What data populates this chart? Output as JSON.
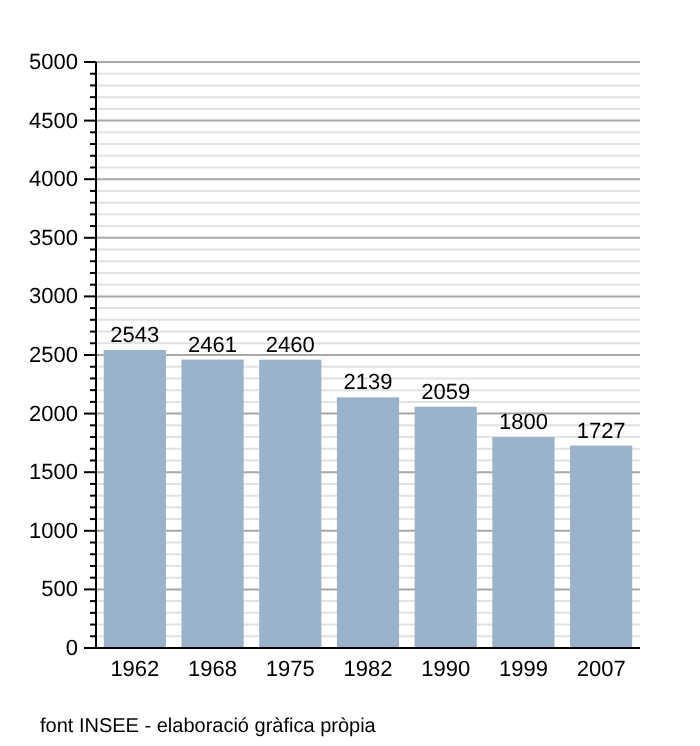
{
  "chart_data": {
    "type": "bar",
    "categories": [
      "1962",
      "1968",
      "1975",
      "1982",
      "1990",
      "1999",
      "2007"
    ],
    "values": [
      2543,
      2461,
      2460,
      2139,
      2059,
      1800,
      1727
    ],
    "color": "#9ab2cb",
    "data_labels": true,
    "grid": "y",
    "ylim": [
      0,
      5000
    ],
    "yticks": [
      0,
      {
        "value": 100,
        "label": null
      },
      {
        "value": 200,
        "label": null
      },
      {
        "value": 300,
        "label": null
      },
      {
        "value": 400,
        "label": null
      },
      500,
      {
        "value": 600,
        "label": null
      },
      {
        "value": 700,
        "label": null
      },
      {
        "value": 800,
        "label": null
      },
      {
        "value": 900,
        "label": null
      },
      1000,
      {
        "value": 1100,
        "label": null
      },
      {
        "value": 1200,
        "label": null
      },
      {
        "value": 1300,
        "label": null
      },
      {
        "value": 1400,
        "label": null
      },
      1500,
      {
        "value": 1600,
        "label": null
      },
      {
        "value": 1700,
        "label": null
      },
      {
        "value": 1800,
        "label": null
      },
      {
        "value": 1900,
        "label": null
      },
      2000,
      {
        "value": 2100,
        "label": null
      },
      {
        "value": 2200,
        "label": null
      },
      {
        "value": 2300,
        "label": null
      },
      {
        "value": 2400,
        "label": null
      },
      2500,
      {
        "value": 2600,
        "label": null
      },
      {
        "value": 2700,
        "label": null
      },
      {
        "value": 2800,
        "label": null
      },
      {
        "value": 2900,
        "label": null
      },
      3000,
      {
        "value": 3100,
        "label": null
      },
      {
        "value": 3200,
        "label": null
      },
      {
        "value": 3300,
        "label": null
      },
      {
        "value": 3400,
        "label": null
      },
      3500,
      {
        "value": 3600,
        "label": null
      },
      {
        "value": 3700,
        "label": null
      },
      {
        "value": 3800,
        "label": null
      },
      {
        "value": 3900,
        "label": null
      },
      4000,
      {
        "value": 4100,
        "label": null
      },
      {
        "value": 4200,
        "label": null
      },
      {
        "value": 4300,
        "label": null
      },
      {
        "value": 4400,
        "label": null
      },
      4500,
      {
        "value": 4600,
        "label": null
      },
      {
        "value": 4700,
        "label": null
      },
      {
        "value": 4800,
        "label": null
      },
      {
        "value": 4900,
        "label": null
      },
      5000
    ],
    "annotations": [
      "font INSEE - elaboració gràfica pròpia"
    ]
  }
}
